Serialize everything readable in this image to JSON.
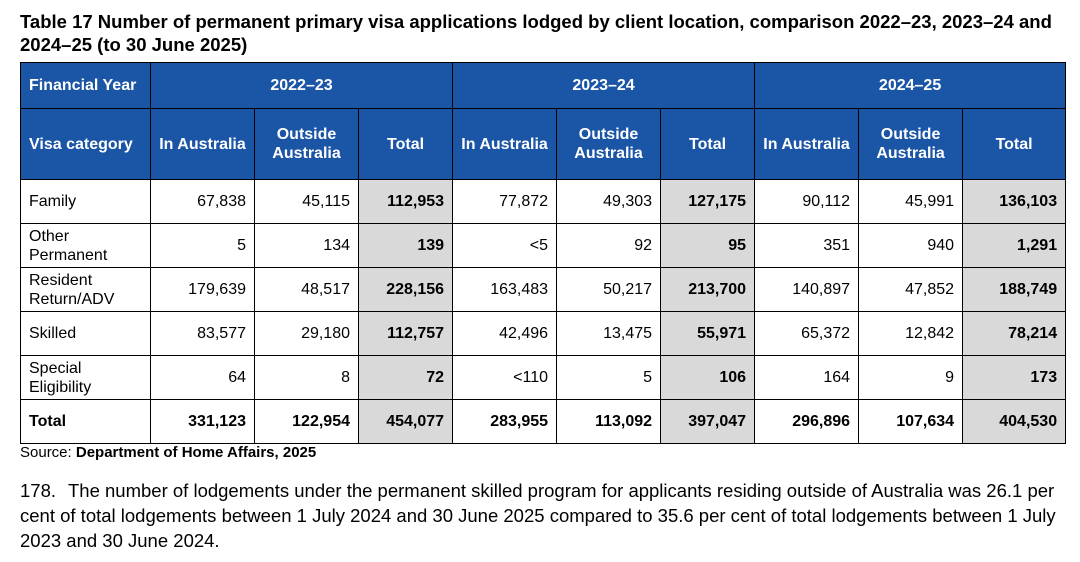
{
  "title": "Table 17 Number of permanent primary visa applications lodged by client location, comparison 2022–23, 2023–24 and 2024–25 (to 30 June 2025)",
  "header": {
    "financial_year": "Financial Year",
    "visa_category": "Visa category",
    "years": [
      "2022–23",
      "2023–24",
      "2024–25"
    ],
    "in_australia": "In Australia",
    "outside_australia": "Outside Australia",
    "total": "Total"
  },
  "rows": [
    {
      "category": "Family",
      "values": [
        "67,838",
        "45,115",
        "112,953",
        "77,872",
        "49,303",
        "127,175",
        "90,112",
        "45,991",
        "136,103"
      ]
    },
    {
      "category": "Other Permanent",
      "values": [
        "5",
        "134",
        "139",
        "<5",
        "92",
        "95",
        "351",
        "940",
        "1,291"
      ]
    },
    {
      "category": "Resident Return/ADV",
      "values": [
        "179,639",
        "48,517",
        "228,156",
        "163,483",
        "50,217",
        "213,700",
        "140,897",
        "47,852",
        "188,749"
      ]
    },
    {
      "category": "Skilled",
      "values": [
        "83,577",
        "29,180",
        "112,757",
        "42,496",
        "13,475",
        "55,971",
        "65,372",
        "12,842",
        "78,214"
      ]
    },
    {
      "category": "Special Eligibility",
      "values": [
        "64",
        "8",
        "72",
        "<110",
        "5",
        "106",
        "164",
        "9",
        "173"
      ]
    },
    {
      "category": "Total",
      "values": [
        "331,123",
        "122,954",
        "454,077",
        "283,955",
        "113,092",
        "397,047",
        "296,896",
        "107,634",
        "404,530"
      ]
    }
  ],
  "source": {
    "prefix": "Source: ",
    "name": "Department of Home Affairs, 2025"
  },
  "paragraph": {
    "number": "178.",
    "text": "The number of lodgements under the permanent skilled program for applicants residing outside of Australia was 26.1 per cent of total lodgements between 1 July 2024 and 30 June 2025 compared to 35.6 per cent of total lodgements between 1 July 2023 and 30 June 2024."
  }
}
